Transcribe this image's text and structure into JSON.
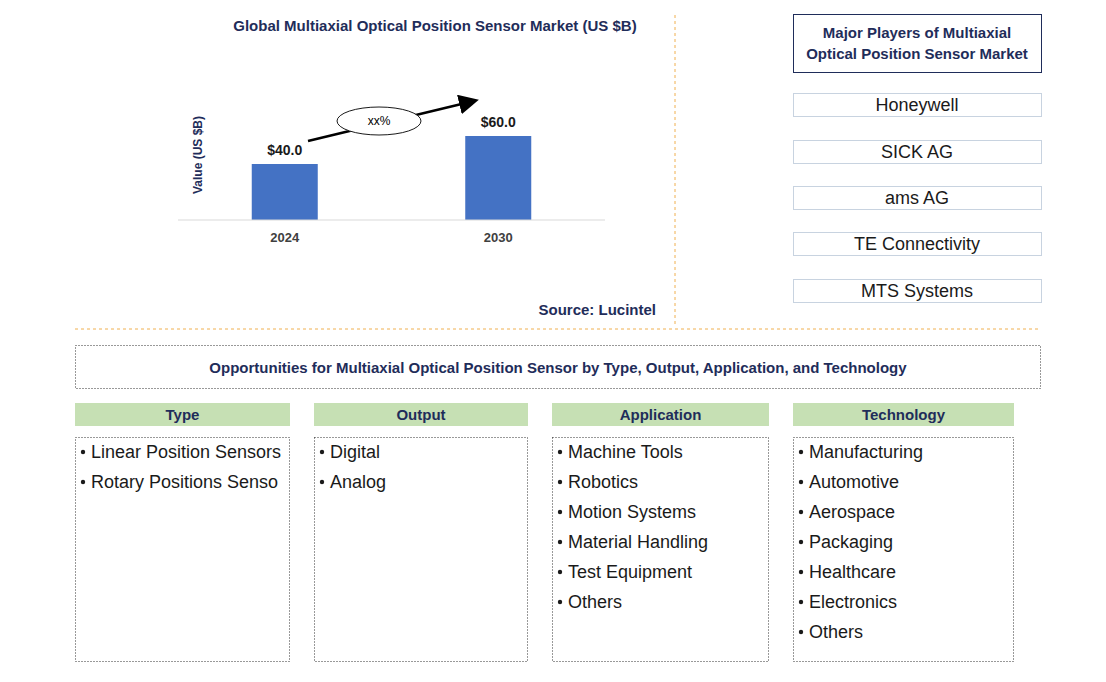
{
  "chart_data": {
    "type": "bar",
    "title": "Global Multiaxial Optical Position Sensor Market (US $B)",
    "y_label": "Value (US $B)",
    "categories": [
      "2024",
      "2030"
    ],
    "values": [
      40,
      60
    ],
    "value_labels": [
      "$40.0",
      "$60.0"
    ],
    "data_labels": true,
    "color": "#4472c4",
    "ylim": [
      0,
      60
    ],
    "tick_labels": "x",
    "annotation": "xx%",
    "source": "Source: Lucintel"
  },
  "players": {
    "title": [
      "Major Players of Multiaxial",
      "Optical Position Sensor Market"
    ],
    "items": [
      "Honeywell",
      "SICK AG",
      "ams AG",
      "TE Connectivity",
      "MTS Systems"
    ]
  },
  "opportunities": {
    "title": "Opportunities for Multiaxial Optical Position Sensor by Type, Output, Application, and Technology",
    "columns": [
      {
        "header": "Type",
        "items": [
          "Linear Position Sensors",
          "Rotary Positions Senso"
        ]
      },
      {
        "header": "Output",
        "items": [
          "Digital",
          "Analog"
        ]
      },
      {
        "header": "Application",
        "items": [
          "Machine Tools",
          "Robotics",
          "Motion Systems",
          "Material Handling",
          "Test Equipment",
          "Others"
        ]
      },
      {
        "header": "Technology",
        "items": [
          "Manufacturing",
          "Automotive",
          "Aerospace",
          "Packaging",
          "Healthcare",
          "Electronics",
          "Others"
        ]
      }
    ]
  }
}
